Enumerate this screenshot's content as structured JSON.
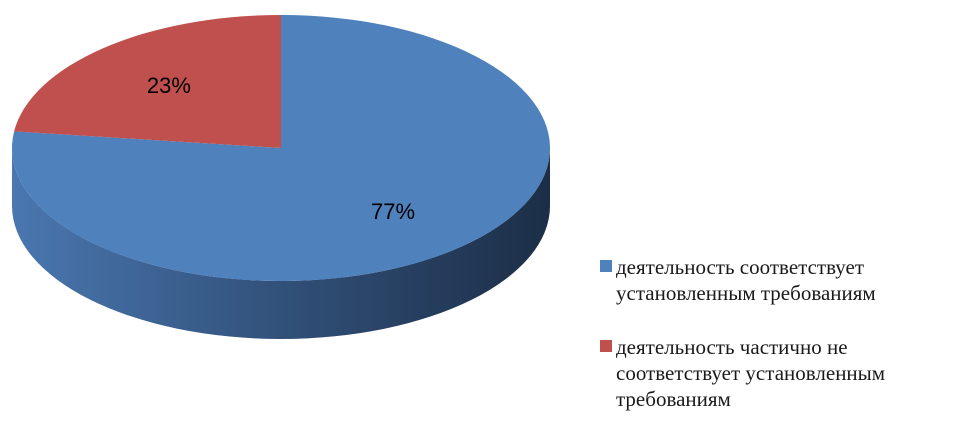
{
  "chart_data": {
    "type": "pie",
    "style": "3d",
    "slices": [
      {
        "label": "деятельность соответствует установленным требованиям",
        "value": 77,
        "data_label": "77%",
        "color": "#4F81BD"
      },
      {
        "label": "деятельность частично не соответствует установленным требованиям",
        "value": 23,
        "data_label": "23%",
        "color": "#C0504D"
      }
    ],
    "legend_position": "right"
  }
}
